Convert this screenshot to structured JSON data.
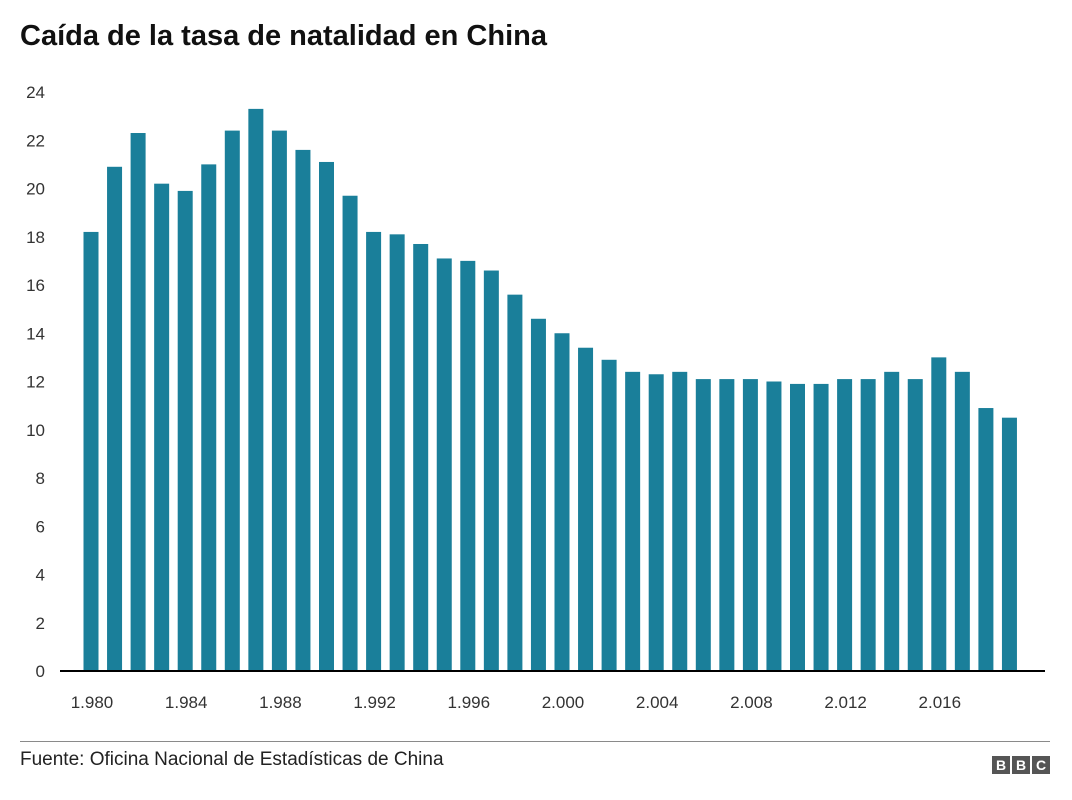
{
  "title": "Caída de la tasa de natalidad en China",
  "source": "Fuente: Oficina Nacional de Estadísticas de China",
  "logo": {
    "letters": [
      "B",
      "B",
      "C"
    ]
  },
  "colors": {
    "bar": "#1a7f9a",
    "axis": "#000000"
  },
  "chart_data": {
    "type": "bar",
    "title": "Caída de la tasa de natalidad en China",
    "xlabel": "",
    "ylabel": "",
    "ylim": [
      0,
      24
    ],
    "y_ticks": [
      0,
      2,
      4,
      6,
      8,
      10,
      12,
      14,
      16,
      18,
      20,
      22,
      24
    ],
    "x_tick_labels": [
      "1.980",
      "1.984",
      "1.988",
      "1.992",
      "1.996",
      "2.000",
      "2.004",
      "2.008",
      "2.012",
      "2.016"
    ],
    "grid": false,
    "categories": [
      1980,
      1981,
      1982,
      1983,
      1984,
      1985,
      1986,
      1987,
      1988,
      1989,
      1990,
      1991,
      1992,
      1993,
      1994,
      1995,
      1996,
      1997,
      1998,
      1999,
      2000,
      2001,
      2002,
      2003,
      2004,
      2005,
      2006,
      2007,
      2008,
      2009,
      2010,
      2011,
      2012,
      2013,
      2014,
      2015,
      2016,
      2017,
      2018,
      2019
    ],
    "values": [
      18.2,
      20.9,
      22.3,
      20.2,
      19.9,
      21.0,
      22.4,
      23.3,
      22.4,
      21.6,
      21.1,
      19.7,
      18.2,
      18.1,
      17.7,
      17.1,
      17.0,
      16.6,
      15.6,
      14.6,
      14.0,
      13.4,
      12.9,
      12.4,
      12.3,
      12.4,
      12.1,
      12.1,
      12.1,
      12.0,
      11.9,
      11.9,
      12.1,
      12.1,
      12.4,
      12.1,
      13.0,
      12.4,
      10.9,
      10.5
    ]
  }
}
